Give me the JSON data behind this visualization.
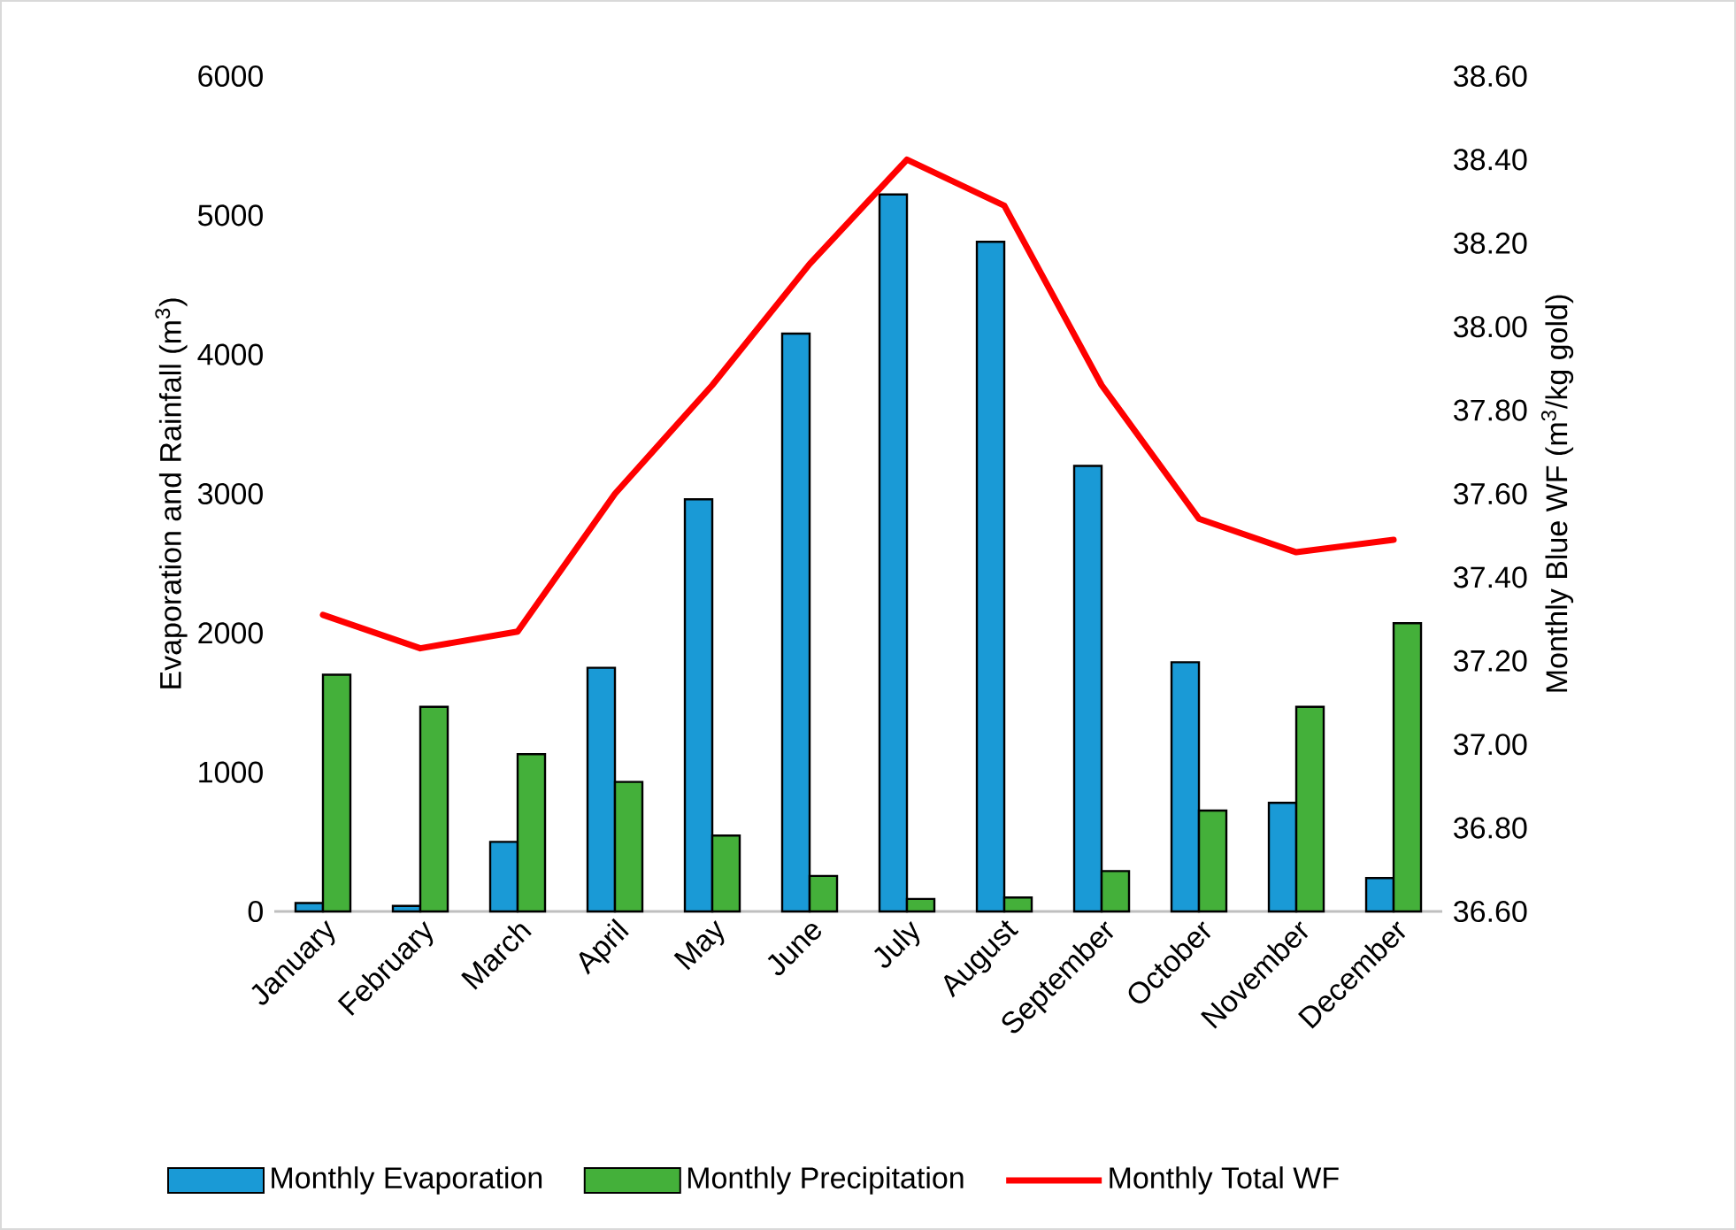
{
  "chart_data": {
    "type": "bar",
    "categories": [
      "January",
      "February",
      "March",
      "April",
      "May",
      "June",
      "July",
      "August",
      "September",
      "October",
      "November",
      "December"
    ],
    "series": [
      {
        "name": "Monthly Evaporation",
        "color": "#1a9ad6",
        "values": [
          60,
          40,
          500,
          1750,
          2960,
          4150,
          5150,
          4810,
          3200,
          1790,
          780,
          240
        ]
      },
      {
        "name": "Monthly Precipitation",
        "color": "#44b03a",
        "values": [
          1700,
          1470,
          1130,
          930,
          545,
          255,
          90,
          100,
          290,
          725,
          1470,
          2070
        ]
      },
      {
        "name": "Monthly Total WF",
        "color": "#ff0000",
        "type": "line",
        "axis": "y2",
        "values": [
          37.31,
          37.23,
          37.27,
          37.6,
          37.86,
          38.15,
          38.4,
          38.29,
          37.86,
          37.54,
          37.46,
          37.49
        ]
      }
    ],
    "ylabel": "Evaporation and Rainfall (m$^{3}$)",
    "y2label": "Monthly Blue WF (m$^{3}$/kg gold)",
    "ylim": [
      0,
      6000
    ],
    "yticks": [
      0,
      1000,
      2000,
      3000,
      4000,
      5000,
      6000
    ],
    "y2lim": [
      36.6,
      38.6
    ],
    "y2ticks": [
      {
        "value": 36.6,
        "label": "36.60"
      },
      {
        "value": 36.8,
        "label": "36.80"
      },
      {
        "value": 37.0,
        "label": "37.00"
      },
      {
        "value": 37.2,
        "label": "37.20"
      },
      {
        "value": 37.4,
        "label": "37.40"
      },
      {
        "value": 37.6,
        "label": "37.60"
      },
      {
        "value": 37.8,
        "label": "37.80"
      },
      {
        "value": 38.0,
        "label": "38.00"
      },
      {
        "value": 38.2,
        "label": "38.20"
      },
      {
        "value": 38.4,
        "label": "38.40"
      },
      {
        "value": 38.6,
        "label": "38.60"
      }
    ],
    "legend": "bottom"
  }
}
